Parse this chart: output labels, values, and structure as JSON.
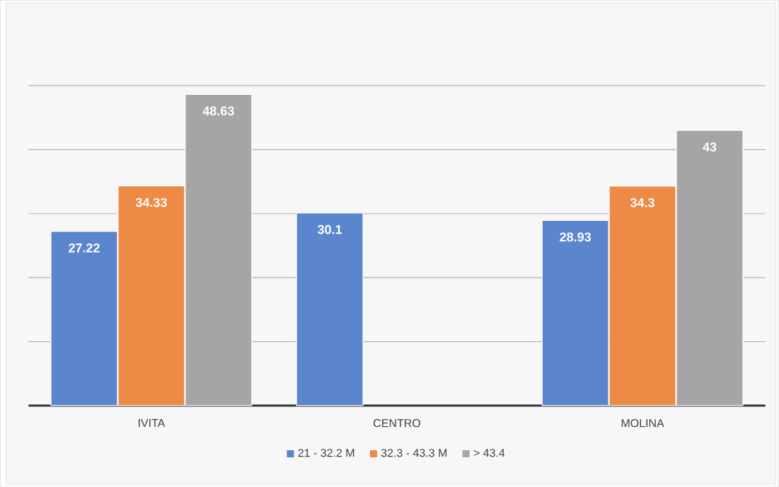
{
  "chart_data": {
    "type": "bar",
    "categories": [
      "IVITA",
      "CENTRO",
      "MOLINA"
    ],
    "series": [
      {
        "name": "21 - 32.2 M",
        "color": "#5b85cc",
        "values": [
          27.22,
          30.1,
          28.93
        ]
      },
      {
        "name": "32.3 - 43.3 M",
        "color": "#ed8a45",
        "values": [
          34.33,
          null,
          34.3
        ]
      },
      {
        "name": "> 43.4",
        "color": "#a5a5a5",
        "values": [
          48.63,
          null,
          43
        ]
      }
    ],
    "grid": "y",
    "legend": "bottom",
    "tick_labels": "x",
    "data_labels": true
  }
}
